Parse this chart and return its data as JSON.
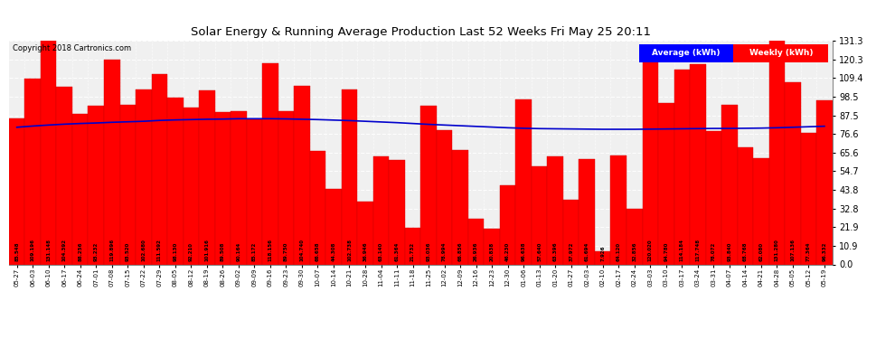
{
  "title": "Solar Energy & Running Average Production Last 52 Weeks Fri May 25 20:11",
  "copyright": "Copyright 2018 Cartronics.com",
  "bar_color": "#ff0000",
  "avg_line_color": "#0000cc",
  "background_color": "#ffffff",
  "plot_bg_color": "#f0f0f0",
  "grid_color": "#ffffff",
  "yticks": [
    0.0,
    10.9,
    21.9,
    32.8,
    43.8,
    54.7,
    65.6,
    76.6,
    87.5,
    98.5,
    109.4,
    120.3,
    131.3
  ],
  "legend_avg_label": "Average (kWh)",
  "legend_weekly_label": "Weekly (kWh)",
  "legend_avg_bg": "#0000ff",
  "legend_weekly_bg": "#ff0000",
  "dates": [
    "05-27",
    "06-03",
    "06-10",
    "06-17",
    "06-24",
    "07-01",
    "07-08",
    "07-15",
    "07-22",
    "07-29",
    "08-05",
    "08-12",
    "08-19",
    "08-26",
    "09-02",
    "09-09",
    "09-16",
    "09-23",
    "09-30",
    "10-07",
    "10-14",
    "10-21",
    "10-28",
    "11-04",
    "11-11",
    "11-18",
    "11-25",
    "12-02",
    "12-09",
    "12-16",
    "12-23",
    "12-30",
    "01-06",
    "01-13",
    "01-20",
    "01-27",
    "02-03",
    "02-10",
    "02-17",
    "02-24",
    "03-03",
    "03-10",
    "03-17",
    "03-24",
    "03-31",
    "04-07",
    "04-14",
    "04-21",
    "04-28",
    "05-05",
    "05-12",
    "05-19"
  ],
  "weekly_values": [
    85.548,
    109.196,
    131.148,
    104.392,
    88.256,
    93.232,
    119.896,
    93.52,
    102.68,
    111.592,
    98.13,
    92.21,
    101.916,
    89.508,
    90.164,
    85.172,
    118.156,
    89.75,
    104.74,
    66.658,
    44.308,
    102.738,
    36.946,
    63.14,
    61.364,
    21.732,
    93.036,
    78.994,
    66.856,
    26.936,
    20.838,
    46.23,
    96.638,
    57.64,
    63.396,
    37.972,
    61.694,
    7.926,
    64.12,
    32.856,
    120.02,
    94.78,
    114.184,
    117.748,
    78.072,
    93.84,
    68.768,
    62.08,
    131.28,
    107.136,
    77.364,
    96.332
  ],
  "avg_values": [
    80.5,
    81.2,
    81.8,
    82.3,
    82.7,
    83.0,
    83.4,
    83.7,
    84.0,
    84.5,
    84.8,
    85.0,
    85.2,
    85.3,
    85.5,
    85.5,
    85.5,
    85.4,
    85.2,
    85.0,
    84.7,
    84.4,
    84.0,
    83.6,
    83.2,
    82.7,
    82.2,
    81.8,
    81.4,
    81.0,
    80.6,
    80.2,
    79.9,
    79.7,
    79.6,
    79.5,
    79.4,
    79.3,
    79.3,
    79.3,
    79.4,
    79.5,
    79.6,
    79.7,
    79.8,
    79.8,
    79.9,
    80.0,
    80.2,
    80.5,
    80.8,
    81.1
  ],
  "ymax": 131.3,
  "figwidth": 9.9,
  "figheight": 3.75,
  "dpi": 100
}
